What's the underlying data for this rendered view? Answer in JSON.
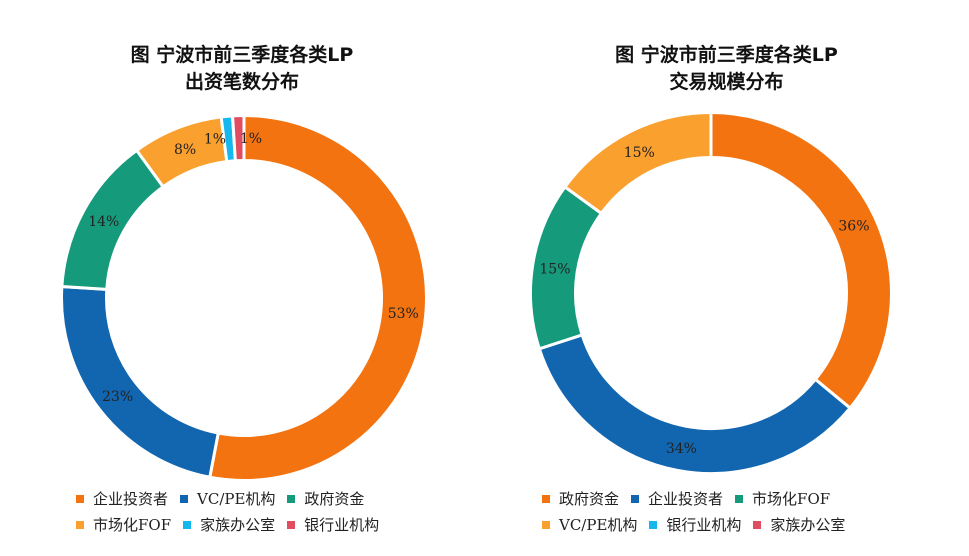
{
  "chart_data": [
    {
      "type": "pie",
      "title": [
        "图  宁波市前三季度各类LP",
        "出资笔数分布"
      ],
      "categories": [
        "企业投资者",
        "VC/PE机构",
        "政府资金",
        "市场化FOF",
        "家族办公室",
        "银行业机构"
      ],
      "values": [
        53,
        23,
        14,
        8,
        1,
        1
      ],
      "labels": [
        "53%",
        "23%",
        "14%",
        "8%",
        "1%",
        "1%"
      ],
      "colors": [
        "#F27310",
        "#1266AF",
        "#169A7C",
        "#F9A02F",
        "#16B7EC",
        "#E04D60"
      ],
      "legend": "bottom"
    },
    {
      "type": "pie",
      "title": [
        "图  宁波市前三季度各类LP",
        "交易规模分布"
      ],
      "categories": [
        "政府资金",
        "企业投资者",
        "市场化FOF",
        "VC/PE机构",
        "银行业机构",
        "家族办公室"
      ],
      "values": [
        36,
        34,
        15,
        15,
        0,
        0
      ],
      "labels": [
        "36%",
        "34%",
        "15%",
        "15%",
        "",
        ""
      ],
      "colors": [
        "#F27310",
        "#1266AF",
        "#169A7C",
        "#F9A02F",
        "#16B7EC",
        "#E04D60"
      ],
      "legend": "bottom"
    }
  ]
}
